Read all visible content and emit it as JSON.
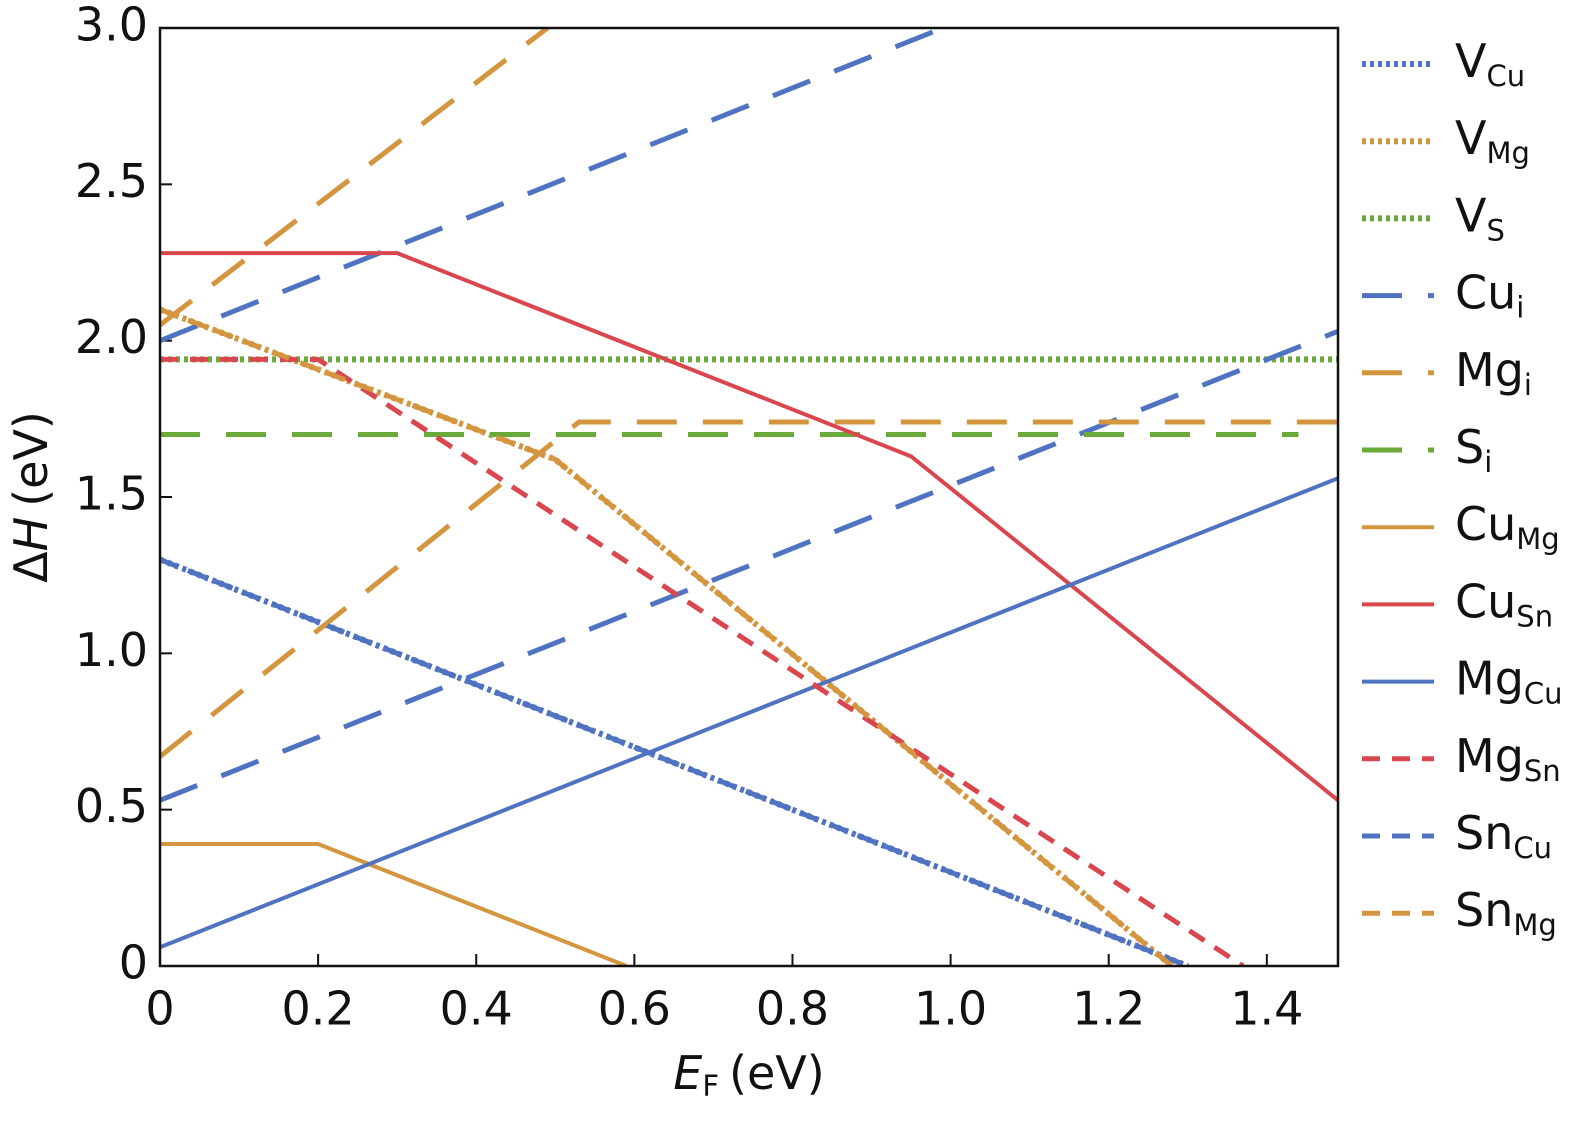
{
  "chart_data": {
    "type": "line",
    "x_label": {
      "symbol": "E",
      "subscript": "F",
      "unit": "(eV)"
    },
    "y_label": {
      "prefix": "Δ",
      "symbol": "H",
      "unit": "(eV)"
    },
    "xlim": [
      0,
      1.49
    ],
    "ylim": [
      0,
      3.0
    ],
    "xticks": [
      0,
      0.2,
      0.4,
      0.6,
      0.8,
      {
        "value": 1.0,
        "label": "1.0"
      },
      1.2,
      1.4
    ],
    "yticks": [
      0,
      0.5,
      {
        "value": 1.0,
        "label": "1.0"
      },
      1.5,
      {
        "value": 2.0,
        "label": "2.0"
      },
      2.5,
      {
        "value": 3.0,
        "label": "3.0"
      }
    ],
    "legend": "right",
    "series": [
      {
        "name": "V",
        "subscript": "Cu",
        "color": "#4f73c0",
        "style": "dotted",
        "x": [
          0,
          0.6,
          1.3
        ],
        "values": [
          1.3,
          0.7,
          0
        ]
      },
      {
        "name": "V",
        "subscript": "Mg",
        "color": "#d4953f",
        "style": "dotted",
        "x": [
          0,
          0.5,
          1.28
        ],
        "values": [
          2.1,
          1.62,
          0
        ]
      },
      {
        "name": "V",
        "subscript": "S",
        "color": "#6aaa3a",
        "style": "dotted",
        "x": [
          0,
          1.49
        ],
        "values": [
          1.94,
          1.94
        ]
      },
      {
        "name": "Cu",
        "subscript": "i",
        "color": "#4f73c0",
        "style": "dashed",
        "x": [
          0,
          1.49,
          null,
          0,
          0.99
        ],
        "values": [
          0.53,
          2.03,
          null,
          2.0,
          3.0
        ]
      },
      {
        "name": "Mg",
        "subscript": "i",
        "color": "#d4953f",
        "style": "dashed",
        "x": [
          0,
          0.5,
          0.53,
          1.49,
          null,
          0,
          0.49
        ],
        "values": [
          0.67,
          1.68,
          1.74,
          1.74,
          null,
          2.05,
          3.0
        ]
      },
      {
        "name": "S",
        "subscript": "i",
        "color": "#6aaa3a",
        "style": "dashed",
        "x": [
          0,
          1.44
        ],
        "values": [
          1.7,
          1.7
        ]
      },
      {
        "name": "Cu",
        "subscript": "Mg",
        "color": "#d4953f",
        "style": "solid",
        "x": [
          0,
          0.2,
          0.59
        ],
        "values": [
          0.39,
          0.39,
          0
        ]
      },
      {
        "name": "Cu",
        "subscript": "Sn",
        "color": "#d9464e",
        "style": "solid",
        "x": [
          0,
          0.3,
          0.95,
          1.49
        ],
        "values": [
          2.28,
          2.28,
          1.63,
          0.53
        ]
      },
      {
        "name": "Mg",
        "subscript": "Cu",
        "color": "#4f73c0",
        "style": "solid",
        "x": [
          0,
          1.49
        ],
        "values": [
          0.06,
          1.56
        ]
      },
      {
        "name": "Mg",
        "subscript": "Sn",
        "color": "#d9464e",
        "style": "short-dashed",
        "x": [
          0,
          0.2,
          1.37
        ],
        "values": [
          1.94,
          1.94,
          0
        ]
      },
      {
        "name": "Sn",
        "subscript": "Cu",
        "color": "#4f73c0",
        "style": "short-dashed",
        "x": [
          0,
          0.6,
          1.3
        ],
        "values": [
          1.3,
          0.7,
          0
        ]
      },
      {
        "name": "Sn",
        "subscript": "Mg",
        "color": "#d4953f",
        "style": "short-dashed",
        "x": [
          0,
          0.5,
          1.28
        ],
        "values": [
          2.1,
          1.62,
          0
        ]
      }
    ]
  }
}
